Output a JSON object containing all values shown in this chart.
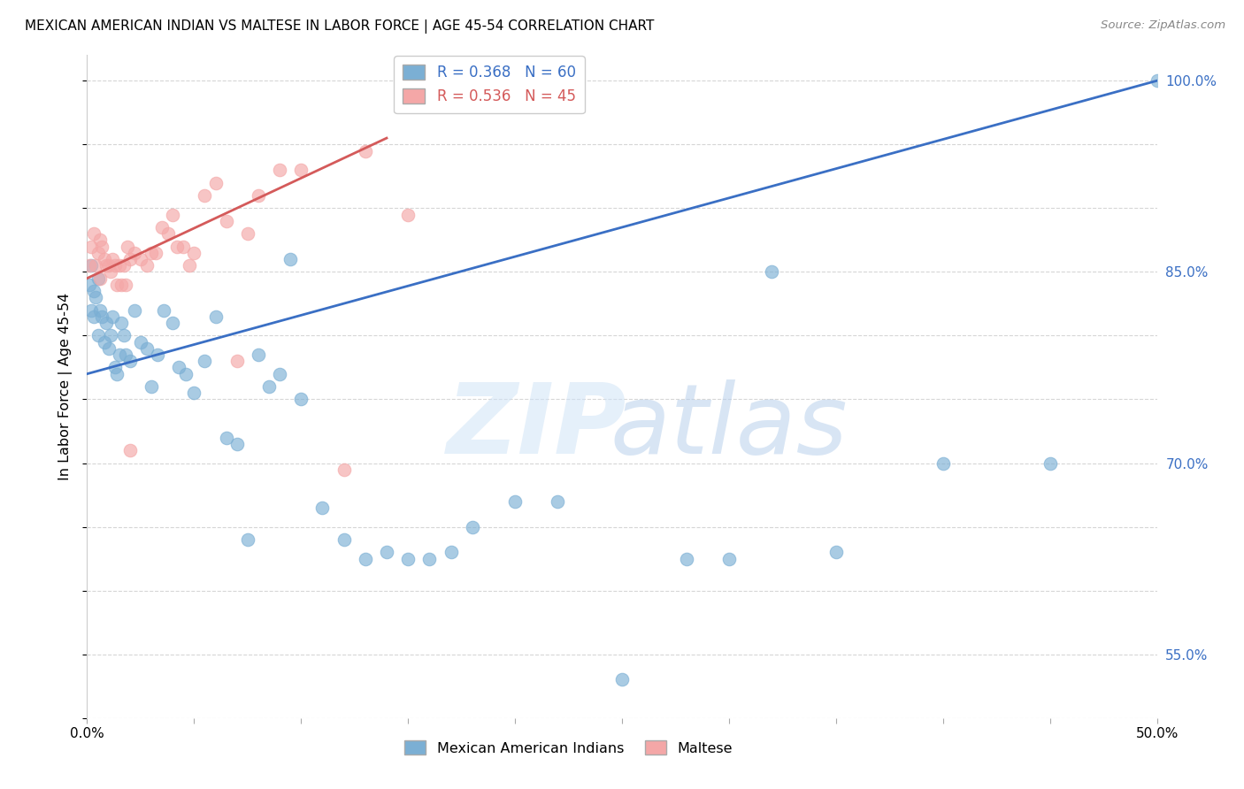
{
  "title": "MEXICAN AMERICAN INDIAN VS MALTESE IN LABOR FORCE | AGE 45-54 CORRELATION CHART",
  "source": "Source: ZipAtlas.com",
  "ylabel": "In Labor Force | Age 45-54",
  "xlim": [
    0.0,
    0.5
  ],
  "ylim": [
    0.5,
    1.02
  ],
  "blue_color": "#7BAFD4",
  "pink_color": "#F4A7A7",
  "blue_line_color": "#3A6FC4",
  "pink_line_color": "#D45A5A",
  "legend_label_blue": "Mexican American Indians",
  "legend_label_pink": "Maltese",
  "blue_R": 0.368,
  "blue_N": 60,
  "pink_R": 0.536,
  "pink_N": 45,
  "blue_x": [
    0.001,
    0.002,
    0.002,
    0.003,
    0.003,
    0.004,
    0.005,
    0.005,
    0.006,
    0.007,
    0.008,
    0.009,
    0.01,
    0.011,
    0.012,
    0.013,
    0.014,
    0.015,
    0.016,
    0.017,
    0.018,
    0.02,
    0.022,
    0.025,
    0.028,
    0.03,
    0.033,
    0.036,
    0.04,
    0.043,
    0.046,
    0.05,
    0.055,
    0.06,
    0.065,
    0.07,
    0.075,
    0.08,
    0.085,
    0.09,
    0.095,
    0.1,
    0.11,
    0.12,
    0.13,
    0.14,
    0.15,
    0.16,
    0.17,
    0.18,
    0.2,
    0.22,
    0.25,
    0.28,
    0.3,
    0.32,
    0.35,
    0.4,
    0.45,
    0.5
  ],
  "blue_y": [
    0.84,
    0.82,
    0.855,
    0.835,
    0.815,
    0.83,
    0.845,
    0.8,
    0.82,
    0.815,
    0.795,
    0.81,
    0.79,
    0.8,
    0.815,
    0.775,
    0.77,
    0.785,
    0.81,
    0.8,
    0.785,
    0.78,
    0.82,
    0.795,
    0.79,
    0.76,
    0.785,
    0.82,
    0.81,
    0.775,
    0.77,
    0.755,
    0.78,
    0.815,
    0.72,
    0.715,
    0.64,
    0.785,
    0.76,
    0.77,
    0.86,
    0.75,
    0.665,
    0.64,
    0.625,
    0.63,
    0.625,
    0.625,
    0.63,
    0.65,
    0.67,
    0.67,
    0.53,
    0.625,
    0.625,
    0.85,
    0.63,
    0.7,
    0.7,
    1.0
  ],
  "pink_x": [
    0.001,
    0.002,
    0.003,
    0.004,
    0.005,
    0.006,
    0.006,
    0.007,
    0.008,
    0.009,
    0.01,
    0.011,
    0.012,
    0.013,
    0.014,
    0.015,
    0.016,
    0.017,
    0.018,
    0.019,
    0.02,
    0.022,
    0.025,
    0.028,
    0.03,
    0.032,
    0.035,
    0.038,
    0.04,
    0.042,
    0.045,
    0.048,
    0.05,
    0.055,
    0.06,
    0.065,
    0.07,
    0.075,
    0.08,
    0.09,
    0.1,
    0.12,
    0.13,
    0.15,
    0.02
  ],
  "pink_y": [
    0.855,
    0.87,
    0.88,
    0.855,
    0.865,
    0.845,
    0.875,
    0.87,
    0.86,
    0.855,
    0.855,
    0.85,
    0.86,
    0.855,
    0.84,
    0.855,
    0.84,
    0.855,
    0.84,
    0.87,
    0.86,
    0.865,
    0.86,
    0.855,
    0.865,
    0.865,
    0.885,
    0.88,
    0.895,
    0.87,
    0.87,
    0.855,
    0.865,
    0.91,
    0.92,
    0.89,
    0.78,
    0.88,
    0.91,
    0.93,
    0.93,
    0.695,
    0.945,
    0.895,
    0.71
  ],
  "ytick_positions": [
    0.55,
    0.7,
    0.85,
    1.0
  ],
  "ytick_labels": [
    "55.0%",
    "70.0%",
    "85.0%",
    "100.0%"
  ]
}
